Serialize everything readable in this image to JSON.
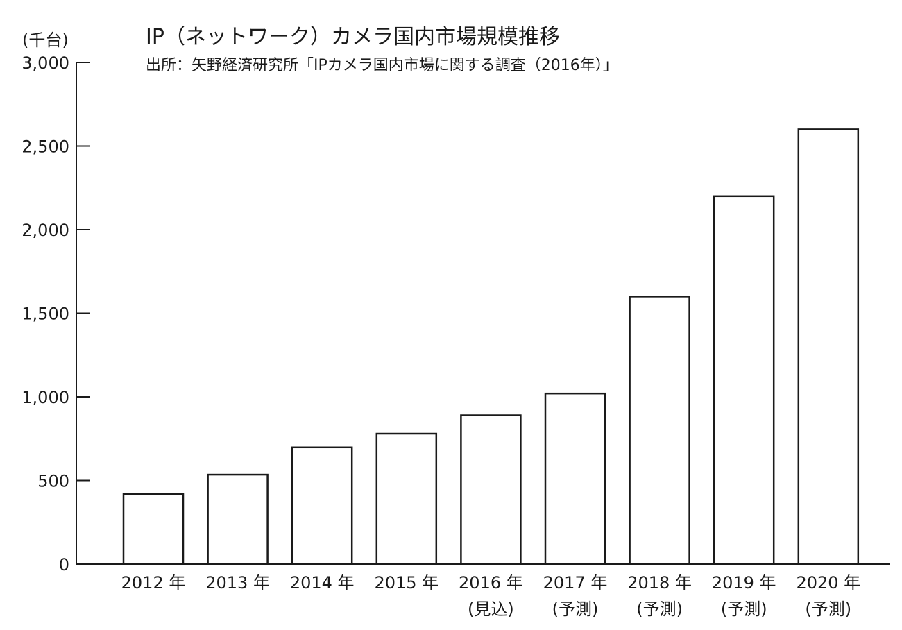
{
  "chart_data": {
    "type": "bar",
    "title": "IP（ネットワーク）カメラ国内市場規模推移",
    "subtitle": "出所：矢野経済研究所「IPカメラ国内市場に関する調査（2016年）」",
    "ylabel": "(千台)",
    "xlabel": "",
    "ylim": [
      0,
      3000
    ],
    "yticks": [
      0,
      500,
      1000,
      1500,
      2000,
      2500,
      3000
    ],
    "ytick_labels": [
      "0",
      "500",
      "1,000",
      "1,500",
      "2,000",
      "2,500",
      "3,000"
    ],
    "categories": [
      "2012 年",
      "2013 年",
      "2014 年",
      "2015 年",
      "2016 年",
      "2017 年",
      "2018 年",
      "2019 年",
      "2020 年"
    ],
    "category_notes": [
      "",
      "",
      "",
      "",
      "(見込)",
      "(予測)",
      "(予測)",
      "(予測)",
      "(予測)"
    ],
    "values": [
      420,
      535,
      698,
      780,
      890,
      1020,
      1600,
      2200,
      2600
    ],
    "grid": false,
    "bar_fill": "#ffffff",
    "bar_stroke": "#1a1a1a"
  }
}
